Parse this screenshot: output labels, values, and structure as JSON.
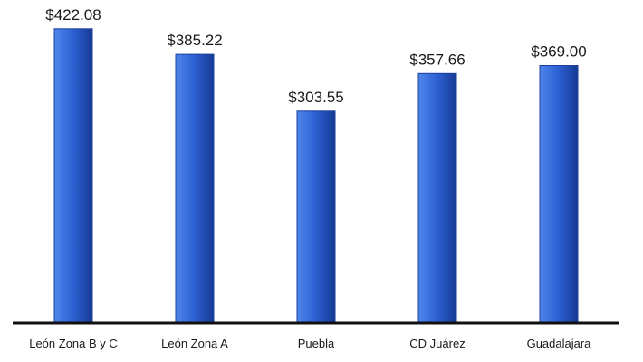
{
  "chart_data": {
    "type": "bar",
    "categories": [
      "León Zona B y C",
      "León Zona A",
      "Puebla",
      "CD Juárez",
      "Guadalajara"
    ],
    "values": [
      422.08,
      385.22,
      303.55,
      357.66,
      369.0
    ],
    "data_labels": [
      "$422.08",
      "$385.22",
      "$303.55",
      "$357.66",
      "$369.00"
    ],
    "ylim": [
      0,
      440
    ],
    "grid": false,
    "legend": "none",
    "colors": {
      "bar_light": "#4f86ea",
      "bar_mid": "#2f63d6",
      "bar_dark": "#163a94",
      "bar_edge": "#1c3f9e",
      "axis": "#111111"
    }
  }
}
